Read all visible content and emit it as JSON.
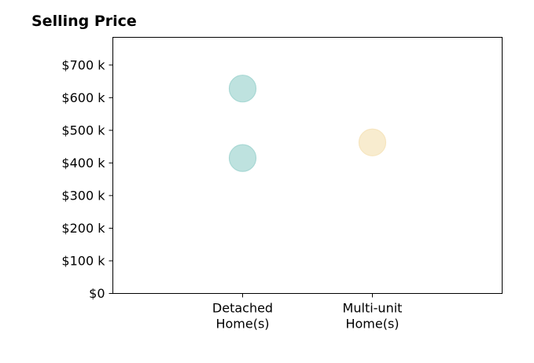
{
  "chart_data": {
    "type": "scatter",
    "title": "Selling Price",
    "xlabel": "",
    "ylabel": "",
    "categories": [
      [
        "Detached",
        "Home(s)"
      ],
      [
        "Multi-unit",
        "Home(s)"
      ]
    ],
    "y_ticks": [
      0,
      100,
      200,
      300,
      400,
      500,
      600,
      700
    ],
    "y_tick_labels": [
      "$0",
      "$100 k",
      "$200 k",
      "$300 k",
      "$400 k",
      "$500 k",
      "$600 k",
      "$700 k"
    ],
    "ylim": [
      0,
      785
    ],
    "x_domain": [
      0,
      3
    ],
    "x_positions": [
      1,
      2
    ],
    "points": [
      {
        "category_index": 0,
        "value": 628,
        "color": "#a8d8d4"
      },
      {
        "category_index": 0,
        "value": 415,
        "color": "#a8d8d4"
      },
      {
        "category_index": 1,
        "value": 463,
        "color": "#f6e5bf"
      }
    ],
    "grid": false,
    "legend": "none"
  }
}
